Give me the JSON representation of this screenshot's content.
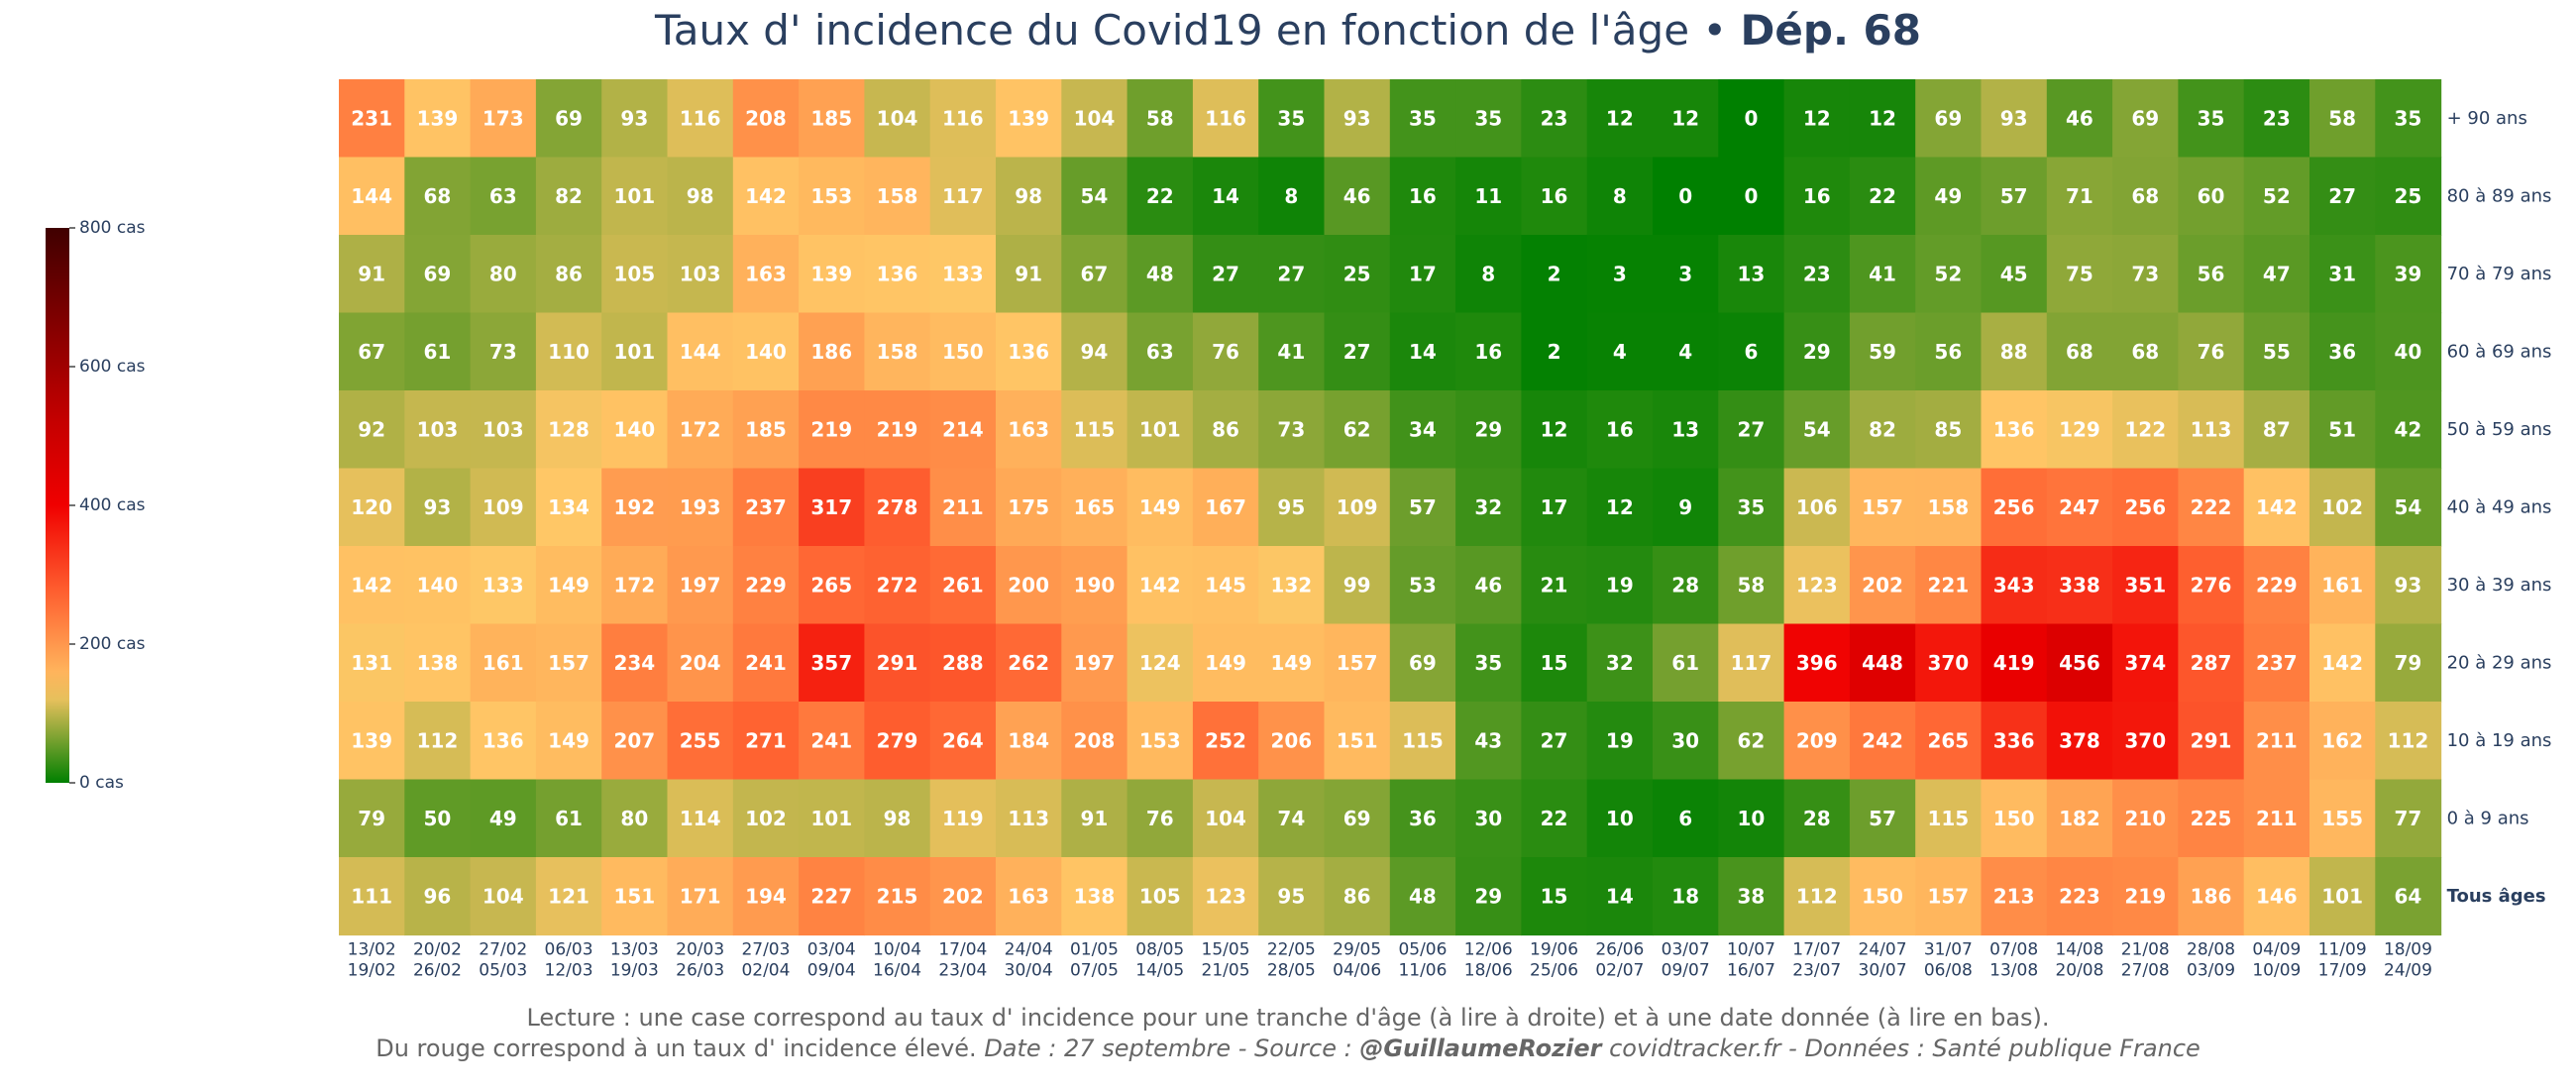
{
  "title": {
    "main": "Taux d' incidence du Covid19 en fonction de l'âge",
    "separator": " • ",
    "dep": "Dép. 68"
  },
  "colorbar": {
    "ticks": [
      {
        "value": 800,
        "label": "800 cas"
      },
      {
        "value": 600,
        "label": "600 cas"
      },
      {
        "value": 400,
        "label": "400 cas"
      },
      {
        "value": 200,
        "label": "200 cas"
      },
      {
        "value": 0,
        "label": "0 cas"
      }
    ],
    "zmin": 0,
    "zmax": 800
  },
  "colors": {
    "scale": [
      "#008000",
      "#ffc766",
      "#ff6633",
      "#f00000",
      "#c00000",
      "#800000",
      "#400000"
    ],
    "text": "#2a3f5f",
    "footer": "#666666"
  },
  "chart_data": {
    "type": "heatmap",
    "title": "Taux d' incidence du Covid19 en fonction de l'âge • Dép. 68",
    "x_start": [
      "13/02",
      "20/02",
      "27/02",
      "06/03",
      "13/03",
      "20/03",
      "27/03",
      "03/04",
      "10/04",
      "17/04",
      "24/04",
      "01/05",
      "08/05",
      "15/05",
      "22/05",
      "29/05",
      "05/06",
      "12/06",
      "19/06",
      "26/06",
      "03/07",
      "10/07",
      "17/07",
      "24/07",
      "31/07",
      "07/08",
      "14/08",
      "21/08",
      "28/08",
      "04/09",
      "11/09",
      "18/09"
    ],
    "x_end": [
      "19/02",
      "26/02",
      "05/03",
      "12/03",
      "19/03",
      "26/03",
      "02/04",
      "09/04",
      "16/04",
      "23/04",
      "30/04",
      "07/05",
      "14/05",
      "21/05",
      "28/05",
      "04/06",
      "11/06",
      "18/06",
      "25/06",
      "02/07",
      "09/07",
      "16/07",
      "23/07",
      "30/07",
      "06/08",
      "13/08",
      "20/08",
      "27/08",
      "03/09",
      "10/09",
      "17/09",
      "24/09"
    ],
    "rows": [
      {
        "label": "+ 90 ans",
        "values": [
          231,
          139,
          173,
          69,
          93,
          116,
          208,
          185,
          104,
          116,
          139,
          104,
          58,
          116,
          35,
          93,
          35,
          35,
          23,
          12,
          12,
          0,
          12,
          12,
          69,
          93,
          46,
          69,
          35,
          23,
          58,
          35
        ]
      },
      {
        "label": "80 à 89 ans",
        "values": [
          144,
          68,
          63,
          82,
          101,
          98,
          142,
          153,
          158,
          117,
          98,
          54,
          22,
          14,
          8,
          46,
          16,
          11,
          16,
          8,
          0,
          0,
          16,
          22,
          49,
          57,
          71,
          68,
          60,
          52,
          27,
          25
        ]
      },
      {
        "label": "70 à 79 ans",
        "values": [
          91,
          69,
          80,
          86,
          105,
          103,
          163,
          139,
          136,
          133,
          91,
          67,
          48,
          27,
          27,
          25,
          17,
          8,
          2,
          3,
          3,
          13,
          23,
          41,
          52,
          45,
          75,
          73,
          56,
          47,
          31,
          39
        ]
      },
      {
        "label": "60 à 69 ans",
        "values": [
          67,
          61,
          73,
          110,
          101,
          144,
          140,
          186,
          158,
          150,
          136,
          94,
          63,
          76,
          41,
          27,
          14,
          16,
          2,
          4,
          4,
          6,
          29,
          59,
          56,
          88,
          68,
          68,
          76,
          55,
          36,
          40
        ]
      },
      {
        "label": "50 à 59 ans",
        "values": [
          92,
          103,
          103,
          128,
          140,
          172,
          185,
          219,
          219,
          214,
          163,
          115,
          101,
          86,
          73,
          62,
          34,
          29,
          12,
          16,
          13,
          27,
          54,
          82,
          85,
          136,
          129,
          122,
          113,
          87,
          51,
          42
        ]
      },
      {
        "label": "40 à 49 ans",
        "values": [
          120,
          93,
          109,
          134,
          192,
          193,
          237,
          317,
          278,
          211,
          175,
          165,
          149,
          167,
          95,
          109,
          57,
          32,
          17,
          12,
          9,
          35,
          106,
          157,
          158,
          256,
          247,
          256,
          222,
          142,
          102,
          54
        ]
      },
      {
        "label": "30 à 39 ans",
        "values": [
          142,
          140,
          133,
          149,
          172,
          197,
          229,
          265,
          272,
          261,
          200,
          190,
          142,
          145,
          132,
          99,
          53,
          46,
          21,
          19,
          28,
          58,
          123,
          202,
          221,
          343,
          338,
          351,
          276,
          229,
          161,
          93
        ]
      },
      {
        "label": "20 à 29 ans",
        "values": [
          131,
          138,
          161,
          157,
          234,
          204,
          241,
          357,
          291,
          288,
          262,
          197,
          124,
          149,
          149,
          157,
          69,
          35,
          15,
          32,
          61,
          117,
          396,
          448,
          370,
          419,
          456,
          374,
          287,
          237,
          142,
          79
        ]
      },
      {
        "label": "10 à 19 ans",
        "values": [
          139,
          112,
          136,
          149,
          207,
          255,
          271,
          241,
          279,
          264,
          184,
          208,
          153,
          252,
          206,
          151,
          115,
          43,
          27,
          19,
          30,
          62,
          209,
          242,
          265,
          336,
          378,
          370,
          291,
          211,
          162,
          112
        ]
      },
      {
        "label": "0 à 9 ans",
        "values": [
          79,
          50,
          49,
          61,
          80,
          114,
          102,
          101,
          98,
          119,
          113,
          91,
          76,
          104,
          74,
          69,
          36,
          30,
          22,
          10,
          6,
          10,
          28,
          57,
          115,
          150,
          182,
          210,
          225,
          211,
          155,
          77
        ]
      },
      {
        "label": "Tous âges",
        "bold": true,
        "values": [
          111,
          96,
          104,
          121,
          151,
          171,
          194,
          227,
          215,
          202,
          163,
          138,
          105,
          123,
          95,
          86,
          48,
          29,
          15,
          14,
          18,
          38,
          112,
          150,
          157,
          213,
          223,
          219,
          186,
          146,
          101,
          64
        ]
      }
    ]
  },
  "footer": {
    "line1": "Lecture : une case correspond au taux d' incidence pour une tranche d'âge (à lire à droite) et à une date donnée (à lire en bas).",
    "line2_a": "Du rouge correspond à un taux d' incidence élevé.  ",
    "line2_date": "Date : 27 septembre - Source : ",
    "line2_author": "@GuillaumeRozier",
    "line2_rest": " covidtracker.fr - Données : Santé publique France"
  }
}
